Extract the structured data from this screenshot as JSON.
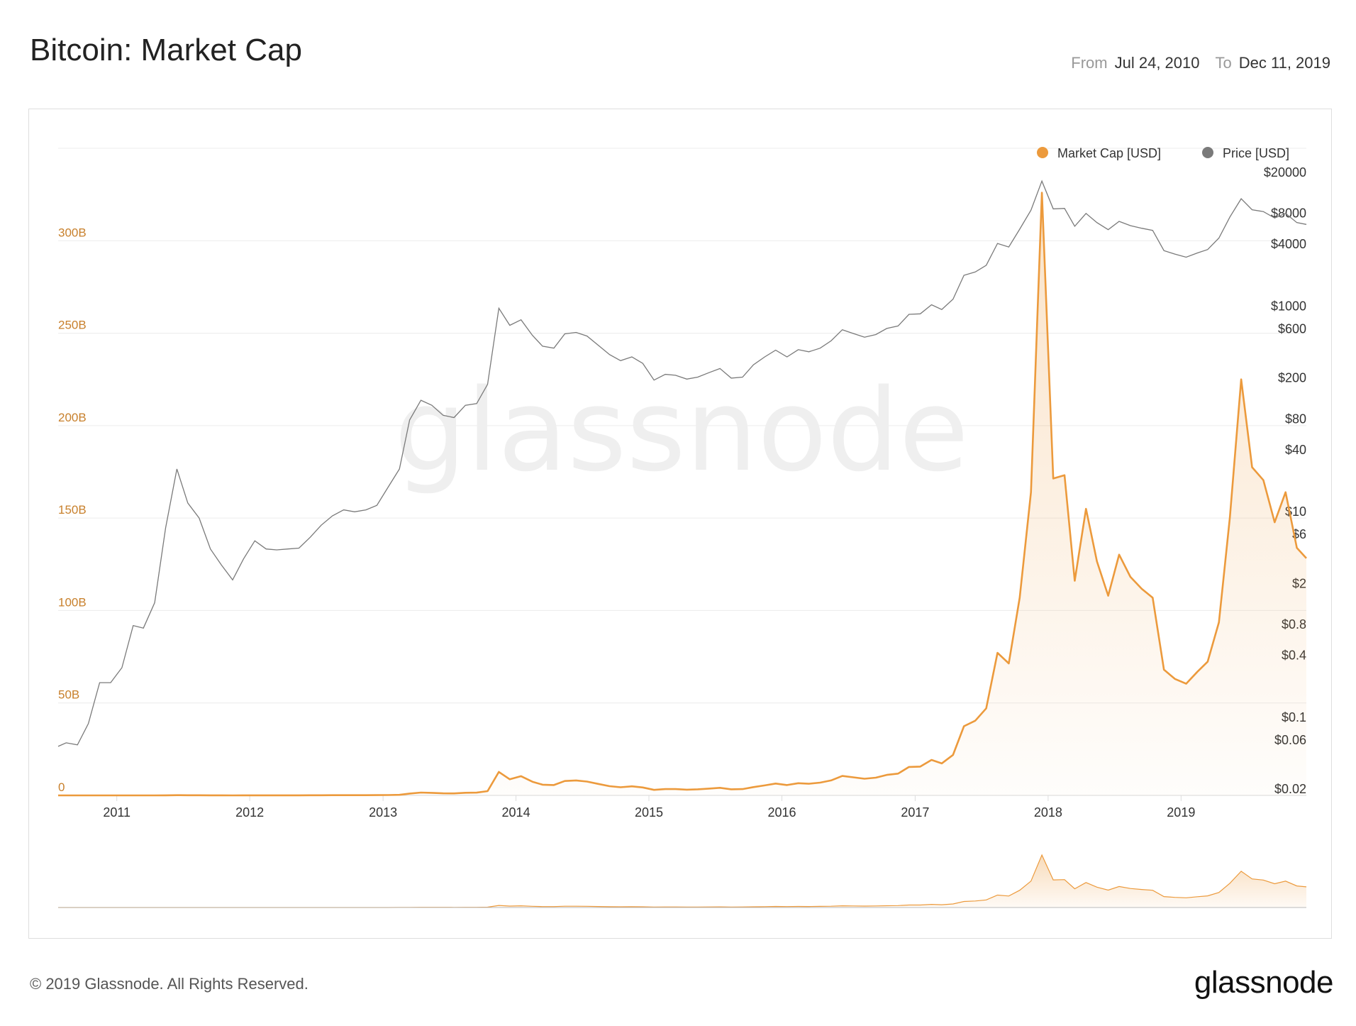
{
  "header": {
    "title": "Bitcoin: Market Cap",
    "from_label": "From",
    "from_value": "Jul 24, 2010",
    "to_label": "To",
    "to_value": "Dec 11, 2019"
  },
  "footer": {
    "copyright": "© 2019 Glassnode. All Rights Reserved.",
    "logo": "glassnode"
  },
  "watermark": "glassnode",
  "colors": {
    "market_cap": "#ec9a3c",
    "price": "#7a7a7a",
    "left_axis_text": "#c8802c",
    "grid": "#ececec"
  },
  "chart_data": {
    "type": "line",
    "title": "Bitcoin: Market Cap",
    "x_range": [
      "2010-07-24",
      "2019-12-11"
    ],
    "x_ticks": [
      "2011",
      "2012",
      "2013",
      "2014",
      "2015",
      "2016",
      "2017",
      "2018",
      "2019"
    ],
    "legend": {
      "position": "top-right",
      "entries": [
        "Market Cap [USD]",
        "Price [USD]"
      ]
    },
    "grid": true,
    "y_left": {
      "scale": "linear",
      "range": [
        0,
        350
      ],
      "unit": "B",
      "tick_labels": [
        "0",
        "50B",
        "100B",
        "150B",
        "200B",
        "250B",
        "300B"
      ],
      "tick_values": [
        0,
        50,
        100,
        150,
        200,
        250,
        300
      ]
    },
    "y_right": {
      "scale": "log",
      "tick_labels": [
        "$20000",
        "$8000",
        "$4000",
        "$1000",
        "$600",
        "$200",
        "$80",
        "$40",
        "$10",
        "$6",
        "$2",
        "$0.8",
        "$0.4",
        "$0.1",
        "$0.06",
        "$0.02"
      ],
      "tick_values": [
        20000,
        8000,
        4000,
        1000,
        600,
        200,
        80,
        40,
        10,
        6,
        2,
        0.8,
        0.4,
        0.1,
        0.06,
        0.02
      ]
    },
    "dates": [
      "2010-07",
      "2010-08",
      "2010-09",
      "2010-10",
      "2010-11",
      "2010-12",
      "2011-01",
      "2011-02",
      "2011-03",
      "2011-04",
      "2011-05",
      "2011-06",
      "2011-07",
      "2011-08",
      "2011-09",
      "2011-10",
      "2011-11",
      "2011-12",
      "2012-01",
      "2012-02",
      "2012-03",
      "2012-04",
      "2012-05",
      "2012-06",
      "2012-07",
      "2012-08",
      "2012-09",
      "2012-10",
      "2012-11",
      "2012-12",
      "2013-01",
      "2013-02",
      "2013-03",
      "2013-04",
      "2013-05",
      "2013-06",
      "2013-07",
      "2013-08",
      "2013-09",
      "2013-10",
      "2013-11",
      "2013-12",
      "2014-01",
      "2014-02",
      "2014-03",
      "2014-04",
      "2014-05",
      "2014-06",
      "2014-07",
      "2014-08",
      "2014-09",
      "2014-10",
      "2014-11",
      "2014-12",
      "2015-01",
      "2015-02",
      "2015-03",
      "2015-04",
      "2015-05",
      "2015-06",
      "2015-07",
      "2015-08",
      "2015-09",
      "2015-10",
      "2015-11",
      "2015-12",
      "2016-01",
      "2016-02",
      "2016-03",
      "2016-04",
      "2016-05",
      "2016-06",
      "2016-07",
      "2016-08",
      "2016-09",
      "2016-10",
      "2016-11",
      "2016-12",
      "2017-01",
      "2017-02",
      "2017-03",
      "2017-04",
      "2017-05",
      "2017-06",
      "2017-07",
      "2017-08",
      "2017-09",
      "2017-10",
      "2017-11",
      "2017-12",
      "2018-01",
      "2018-02",
      "2018-03",
      "2018-04",
      "2018-05",
      "2018-06",
      "2018-07",
      "2018-08",
      "2018-09",
      "2018-10",
      "2018-11",
      "2018-12",
      "2019-01",
      "2019-02",
      "2019-03",
      "2019-04",
      "2019-05",
      "2019-06",
      "2019-07",
      "2019-08",
      "2019-09",
      "2019-10",
      "2019-11",
      "2019-12"
    ],
    "series": [
      {
        "name": "Market Cap [USD]",
        "unit": "B",
        "axis": "left",
        "values": [
          0.0002,
          0.0002,
          0.0002,
          0.0004,
          0.001,
          0.001,
          0.0019,
          0.005,
          0.005,
          0.009,
          0.049,
          0.106,
          0.09,
          0.064,
          0.033,
          0.024,
          0.018,
          0.031,
          0.049,
          0.041,
          0.041,
          0.043,
          0.044,
          0.058,
          0.077,
          0.096,
          0.11,
          0.11,
          0.12,
          0.14,
          0.21,
          0.32,
          0.98,
          1.54,
          1.38,
          1.11,
          1.06,
          1.41,
          1.48,
          2.29,
          12.7,
          8.7,
          10.4,
          7.4,
          5.8,
          5.6,
          7.8,
          8.1,
          7.5,
          6.2,
          5.0,
          4.4,
          4.9,
          4.3,
          3.0,
          3.4,
          3.4,
          3.1,
          3.3,
          3.7,
          4.1,
          3.3,
          3.4,
          4.5,
          5.4,
          6.4,
          5.6,
          6.6,
          6.3,
          6.9,
          8.1,
          10.5,
          9.8,
          9.0,
          9.6,
          11.1,
          11.8,
          15.4,
          15.6,
          19.2,
          17.3,
          21.9,
          37.4,
          40.4,
          47.1,
          77.1,
          71.4,
          106.9,
          164.0,
          326,
          171.4,
          173.2,
          116.1,
          155.0,
          126.6,
          108.0,
          130.2,
          118.2,
          111.7,
          106.9,
          68.0,
          63.0,
          60.4,
          66.9,
          72.3,
          93.6,
          150.5,
          225,
          177.5,
          170.5,
          147.7,
          164.0,
          133.9,
          128.3
        ]
      },
      {
        "name": "Price [USD]",
        "unit": "USD",
        "axis": "right",
        "values": [
          0.06,
          0.065,
          0.062,
          0.1,
          0.25,
          0.25,
          0.35,
          0.9,
          0.85,
          1.5,
          8,
          30,
          14,
          10,
          5,
          3.5,
          2.5,
          4,
          6,
          5,
          4.9,
          5,
          5.1,
          6.5,
          8.5,
          10.5,
          12,
          11.5,
          12,
          13.3,
          20,
          30,
          90,
          140,
          125,
          100,
          95,
          125,
          130,
          200,
          1100,
          750,
          850,
          600,
          470,
          450,
          620,
          640,
          590,
          480,
          390,
          340,
          370,
          320,
          220,
          250,
          245,
          225,
          235,
          260,
          285,
          230,
          235,
          310,
          370,
          430,
          370,
          435,
          415,
          450,
          530,
          680,
          625,
          575,
          610,
          700,
          740,
          960,
          970,
          1190,
          1070,
          1350,
          2300,
          2480,
          2880,
          4700,
          4340,
          6470,
          9900,
          19000,
          10200,
          10300,
          6900,
          9200,
          7500,
          6400,
          7700,
          7000,
          6600,
          6300,
          4000,
          3700,
          3450,
          3800,
          4100,
          5300,
          8500,
          12800,
          10000,
          9600,
          8300,
          9200,
          7500,
          7200
        ]
      }
    ]
  }
}
